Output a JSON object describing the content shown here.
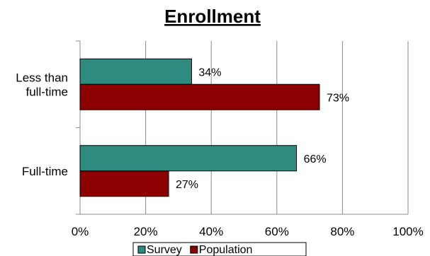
{
  "chart_data": {
    "type": "bar",
    "orientation": "horizontal",
    "title": "Enrollment",
    "categories": [
      "Less than full-time",
      "Full-time"
    ],
    "category_lines": [
      [
        "Less than",
        "full-time"
      ],
      [
        "Full-time"
      ]
    ],
    "series": [
      {
        "name": "Survey",
        "values": [
          34,
          66
        ],
        "color": "#2f8a80"
      },
      {
        "name": "Population",
        "values": [
          73,
          27
        ],
        "color": "#8b0000"
      }
    ],
    "value_labels": [
      [
        "34%",
        "66%"
      ],
      [
        "73%",
        "27%"
      ]
    ],
    "xlim": [
      0,
      100
    ],
    "x_ticks": [
      "0%",
      "20%",
      "40%",
      "60%",
      "80%",
      "100%"
    ],
    "grid": "vertical",
    "legend_position": "bottom"
  }
}
